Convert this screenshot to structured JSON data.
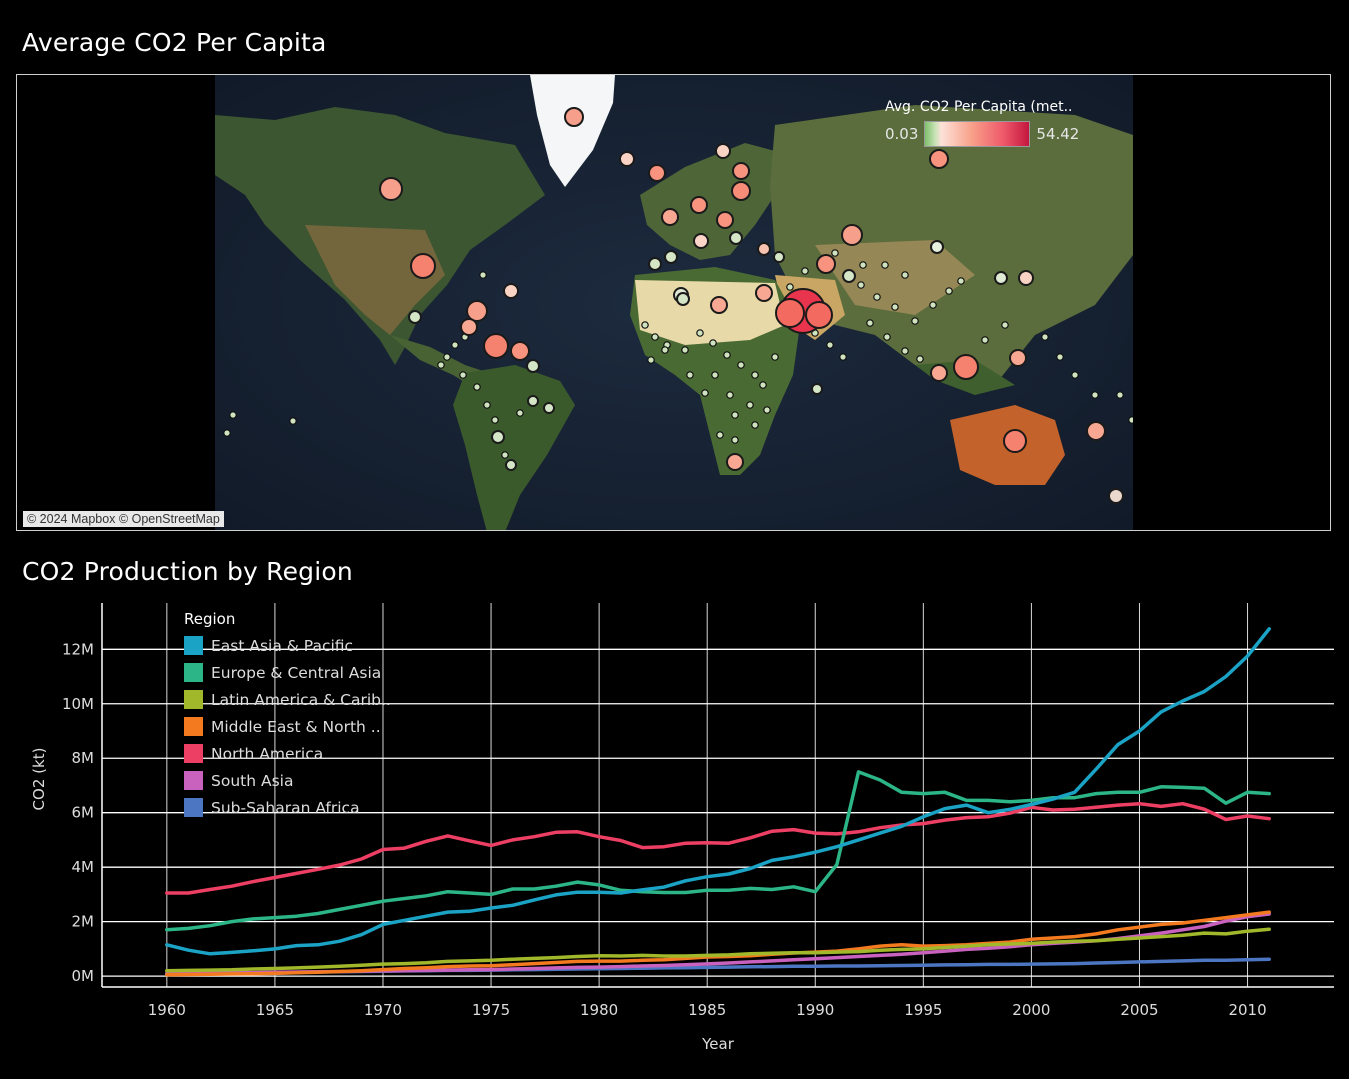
{
  "map": {
    "title": "Average CO2 Per Capita",
    "attribution": "© 2024 Mapbox © OpenStreetMap",
    "legend": {
      "title": "Avg. CO2 Per Capita (met..",
      "min_label": "0.03",
      "max_label": "54.42"
    }
  },
  "chart": {
    "title": "CO2 Production by Region",
    "legend_title": "Region"
  },
  "chart_data": {
    "type": "line",
    "title": "CO2 Production by Region",
    "xlabel": "Year",
    "ylabel": "CO2 (kt)",
    "xlim": [
      1957,
      2014
    ],
    "ylim": [
      -0.4,
      13.7
    ],
    "y_unit": "M",
    "x_ticks": [
      1960,
      1965,
      1970,
      1975,
      1980,
      1985,
      1990,
      1995,
      2000,
      2005,
      2010
    ],
    "y_ticks": [
      0,
      2,
      4,
      6,
      8,
      10,
      12
    ],
    "y_tick_labels": [
      "0M",
      "2M",
      "4M",
      "6M",
      "8M",
      "10M",
      "12M"
    ],
    "legend_position": "top-left",
    "grid": true,
    "x": [
      1960,
      1961,
      1962,
      1963,
      1964,
      1965,
      1966,
      1967,
      1968,
      1969,
      1970,
      1971,
      1972,
      1973,
      1974,
      1975,
      1976,
      1977,
      1978,
      1979,
      1980,
      1981,
      1982,
      1983,
      1984,
      1985,
      1986,
      1987,
      1988,
      1989,
      1990,
      1991,
      1992,
      1993,
      1994,
      1995,
      1996,
      1997,
      1998,
      1999,
      2000,
      2001,
      2002,
      2003,
      2004,
      2005,
      2006,
      2007,
      2008,
      2009,
      2010,
      2011
    ],
    "series": [
      {
        "name": "East Asia & Pacific",
        "color": "#1ba3c6",
        "values": [
          1.15,
          0.95,
          0.82,
          0.87,
          0.93,
          1.0,
          1.12,
          1.15,
          1.28,
          1.52,
          1.9,
          2.05,
          2.2,
          2.35,
          2.38,
          2.5,
          2.6,
          2.8,
          2.98,
          3.08,
          3.08,
          3.05,
          3.17,
          3.27,
          3.5,
          3.65,
          3.75,
          3.95,
          4.25,
          4.38,
          4.55,
          4.75,
          5.0,
          5.25,
          5.5,
          5.85,
          6.15,
          6.28,
          6.0,
          6.12,
          6.3,
          6.5,
          6.75,
          7.6,
          8.5,
          9.0,
          9.7,
          10.1,
          10.45,
          11.0,
          11.75,
          12.75
        ]
      },
      {
        "name": "Europe & Central Asia",
        "color": "#2cb586",
        "values": [
          1.7,
          1.75,
          1.85,
          2.0,
          2.1,
          2.15,
          2.2,
          2.3,
          2.45,
          2.6,
          2.75,
          2.85,
          2.95,
          3.1,
          3.05,
          3.0,
          3.2,
          3.2,
          3.3,
          3.45,
          3.35,
          3.15,
          3.1,
          3.07,
          3.07,
          3.15,
          3.15,
          3.22,
          3.18,
          3.28,
          3.1,
          4.1,
          7.5,
          7.2,
          6.75,
          6.7,
          6.75,
          6.45,
          6.45,
          6.4,
          6.45,
          6.55,
          6.55,
          6.7,
          6.75,
          6.75,
          6.95,
          6.93,
          6.9,
          6.35,
          6.75,
          6.7
        ]
      },
      {
        "name": "Latin America & Carib..",
        "color": "#a0b82a",
        "values": [
          0.2,
          0.21,
          0.22,
          0.23,
          0.26,
          0.28,
          0.3,
          0.33,
          0.36,
          0.4,
          0.44,
          0.46,
          0.49,
          0.54,
          0.56,
          0.58,
          0.62,
          0.65,
          0.68,
          0.72,
          0.75,
          0.74,
          0.76,
          0.74,
          0.74,
          0.76,
          0.78,
          0.82,
          0.84,
          0.86,
          0.86,
          0.88,
          0.9,
          0.95,
          0.98,
          1.0,
          1.05,
          1.1,
          1.15,
          1.18,
          1.2,
          1.25,
          1.28,
          1.3,
          1.35,
          1.4,
          1.45,
          1.5,
          1.58,
          1.55,
          1.65,
          1.72
        ]
      },
      {
        "name": "Middle East & North ..",
        "color": "#f47a1f",
        "values": [
          0.05,
          0.06,
          0.07,
          0.08,
          0.09,
          0.1,
          0.12,
          0.14,
          0.17,
          0.2,
          0.24,
          0.28,
          0.31,
          0.35,
          0.37,
          0.38,
          0.42,
          0.46,
          0.5,
          0.54,
          0.55,
          0.55,
          0.58,
          0.6,
          0.65,
          0.7,
          0.72,
          0.75,
          0.8,
          0.85,
          0.88,
          0.92,
          1.0,
          1.1,
          1.15,
          1.1,
          1.12,
          1.15,
          1.2,
          1.25,
          1.35,
          1.4,
          1.45,
          1.55,
          1.7,
          1.8,
          1.9,
          1.95,
          2.05,
          2.15,
          2.25,
          2.35
        ]
      },
      {
        "name": "North America",
        "color": "#ed3f63",
        "values": [
          3.05,
          3.05,
          3.18,
          3.3,
          3.47,
          3.62,
          3.77,
          3.92,
          4.08,
          4.3,
          4.65,
          4.7,
          4.95,
          5.15,
          4.97,
          4.8,
          5.0,
          5.12,
          5.28,
          5.3,
          5.12,
          4.98,
          4.72,
          4.75,
          4.88,
          4.9,
          4.88,
          5.08,
          5.32,
          5.38,
          5.25,
          5.22,
          5.3,
          5.45,
          5.55,
          5.6,
          5.73,
          5.82,
          5.85,
          5.98,
          6.2,
          6.1,
          6.13,
          6.2,
          6.28,
          6.33,
          6.23,
          6.33,
          6.13,
          5.75,
          5.88,
          5.78
        ]
      },
      {
        "name": "South Asia",
        "color": "#c961be",
        "values": [
          0.1,
          0.1,
          0.11,
          0.12,
          0.13,
          0.14,
          0.15,
          0.16,
          0.17,
          0.18,
          0.19,
          0.2,
          0.21,
          0.22,
          0.23,
          0.24,
          0.26,
          0.28,
          0.3,
          0.32,
          0.33,
          0.35,
          0.37,
          0.39,
          0.42,
          0.45,
          0.48,
          0.52,
          0.56,
          0.6,
          0.64,
          0.68,
          0.72,
          0.76,
          0.8,
          0.86,
          0.92,
          0.98,
          1.02,
          1.08,
          1.15,
          1.2,
          1.25,
          1.3,
          1.38,
          1.48,
          1.58,
          1.7,
          1.82,
          2.02,
          2.18,
          2.28
        ]
      },
      {
        "name": "Sub-Saharan Africa",
        "color": "#4c75c2",
        "values": [
          0.1,
          0.1,
          0.11,
          0.11,
          0.12,
          0.13,
          0.14,
          0.15,
          0.16,
          0.17,
          0.18,
          0.19,
          0.2,
          0.21,
          0.21,
          0.22,
          0.23,
          0.24,
          0.25,
          0.26,
          0.27,
          0.28,
          0.29,
          0.3,
          0.31,
          0.32,
          0.33,
          0.34,
          0.35,
          0.36,
          0.36,
          0.37,
          0.37,
          0.38,
          0.39,
          0.4,
          0.41,
          0.42,
          0.43,
          0.43,
          0.44,
          0.45,
          0.46,
          0.48,
          0.5,
          0.52,
          0.54,
          0.56,
          0.58,
          0.58,
          0.6,
          0.62
        ]
      }
    ]
  }
}
